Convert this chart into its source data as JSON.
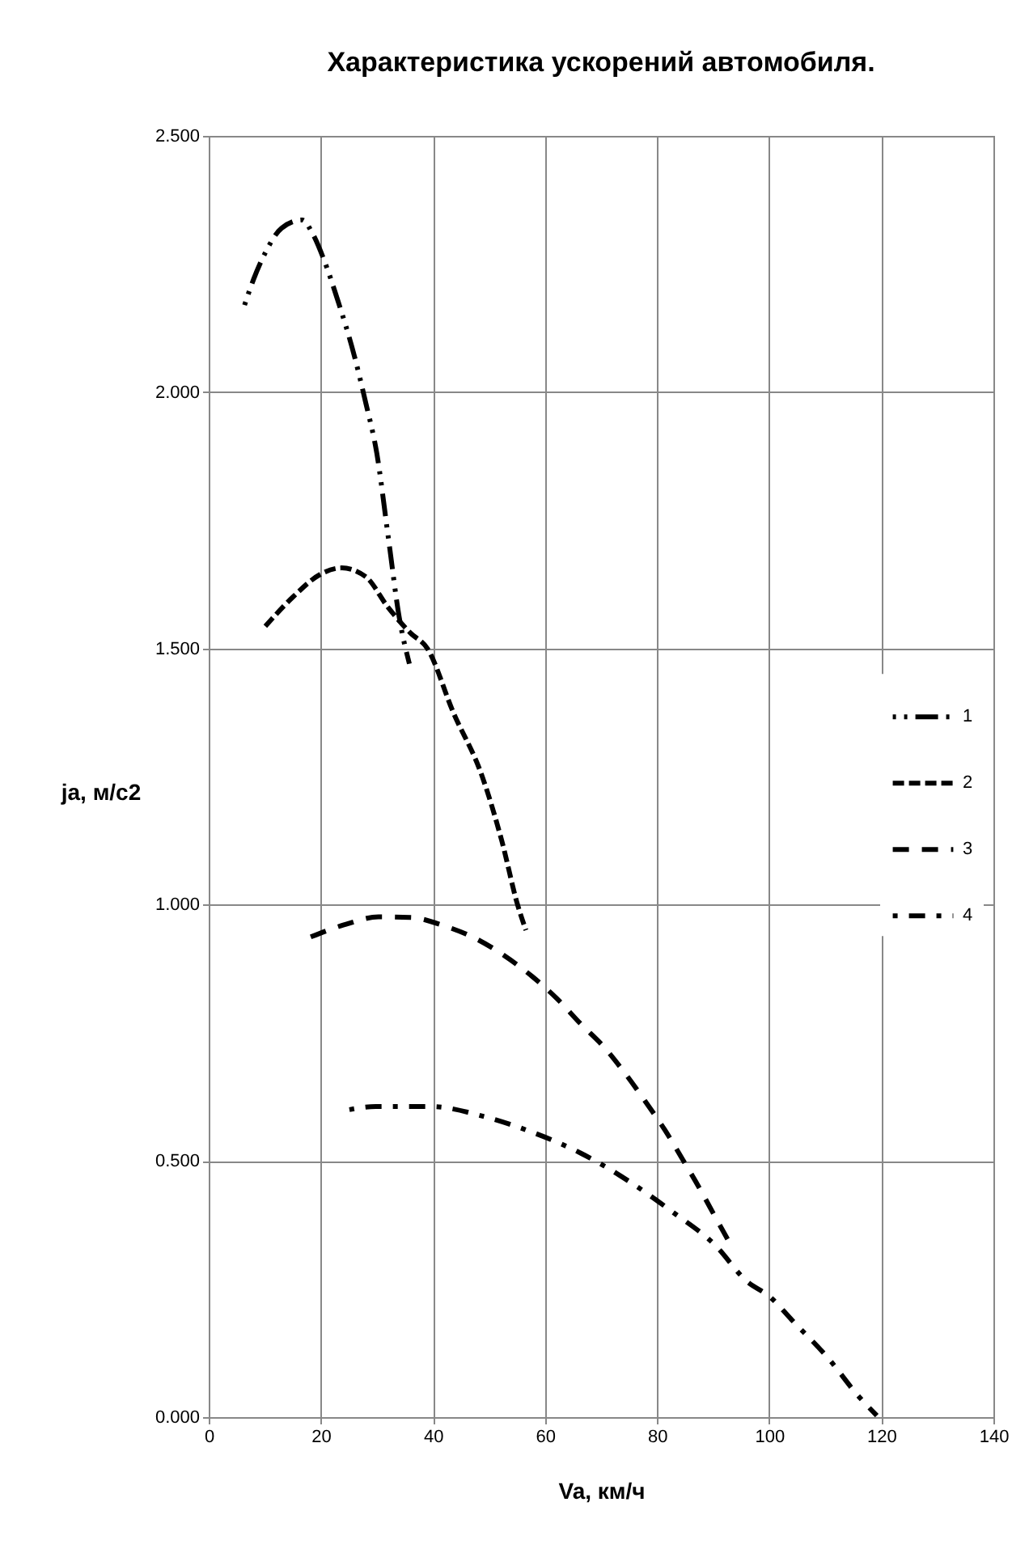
{
  "chart_data": {
    "type": "line",
    "title": "Характеристика ускорений автомобиля.",
    "xlabel": "Va, км/ч",
    "ylabel": "ja, м/с2",
    "xlim": [
      0,
      140
    ],
    "xticks": [
      0,
      20,
      40,
      60,
      80,
      100,
      120,
      140
    ],
    "ylim": [
      0,
      2.5
    ],
    "yticks": [
      {
        "value": 0,
        "label": "0.000"
      },
      {
        "value": 0.5,
        "label": "0.500"
      },
      {
        "value": 1,
        "label": "1.000"
      },
      {
        "value": 1.5,
        "label": "1.500"
      },
      {
        "value": 2,
        "label": "2.000"
      },
      {
        "value": 2.5,
        "label": "2.500"
      }
    ],
    "grid": true,
    "legend": "right",
    "marker": "none",
    "series": [
      {
        "name": "1",
        "color": "#000000",
        "line_style": "dotted",
        "x": [
          6.4,
          8,
          10,
          13,
          16.7,
          18.5,
          20.5,
          23,
          26,
          28,
          30,
          32,
          34,
          35.8
        ],
        "values": [
          2.17,
          2.22,
          2.27,
          2.32,
          2.336,
          2.31,
          2.26,
          2.18,
          2.07,
          1.98,
          1.88,
          1.72,
          1.56,
          1.47
        ]
      },
      {
        "name": "2",
        "color": "#000000",
        "line_style": "dashed",
        "x": [
          10.1,
          15,
          20,
          23.7,
          28,
          32,
          36,
          39,
          43.6,
          48.8,
          52.3,
          55.1,
          56.6
        ],
        "values": [
          1.543,
          1.6,
          1.645,
          1.657,
          1.64,
          1.58,
          1.53,
          1.5,
          1.376,
          1.25,
          1.124,
          1.0,
          0.95
        ]
      },
      {
        "name": "3",
        "color": "#000000",
        "line_style": "dashed",
        "x": [
          18.2,
          24,
          30.3,
          36,
          41.9,
          47.6,
          52.8,
          57.7,
          62.1,
          66.4,
          70.7,
          74.2,
          77.9,
          81.4,
          84.6,
          87.5,
          90.4,
          93.2
        ],
        "values": [
          0.937,
          0.96,
          0.976,
          0.975,
          0.959,
          0.934,
          0.9,
          0.86,
          0.817,
          0.767,
          0.72,
          0.672,
          0.616,
          0.56,
          0.502,
          0.448,
          0.39,
          0.335
        ]
      },
      {
        "name": "4",
        "color": "#000000",
        "line_style": "dashed",
        "x": [
          25.1,
          29.8,
          39.5,
          49,
          57.7,
          66.4,
          75,
          82.8,
          90.4,
          96,
          100.2,
          104,
          110.6,
          116,
          119.2
        ],
        "values": [
          0.6,
          0.606,
          0.606,
          0.587,
          0.556,
          0.515,
          0.46,
          0.4,
          0.335,
          0.265,
          0.234,
          0.19,
          0.114,
          0.04,
          0.003
        ]
      }
    ]
  }
}
